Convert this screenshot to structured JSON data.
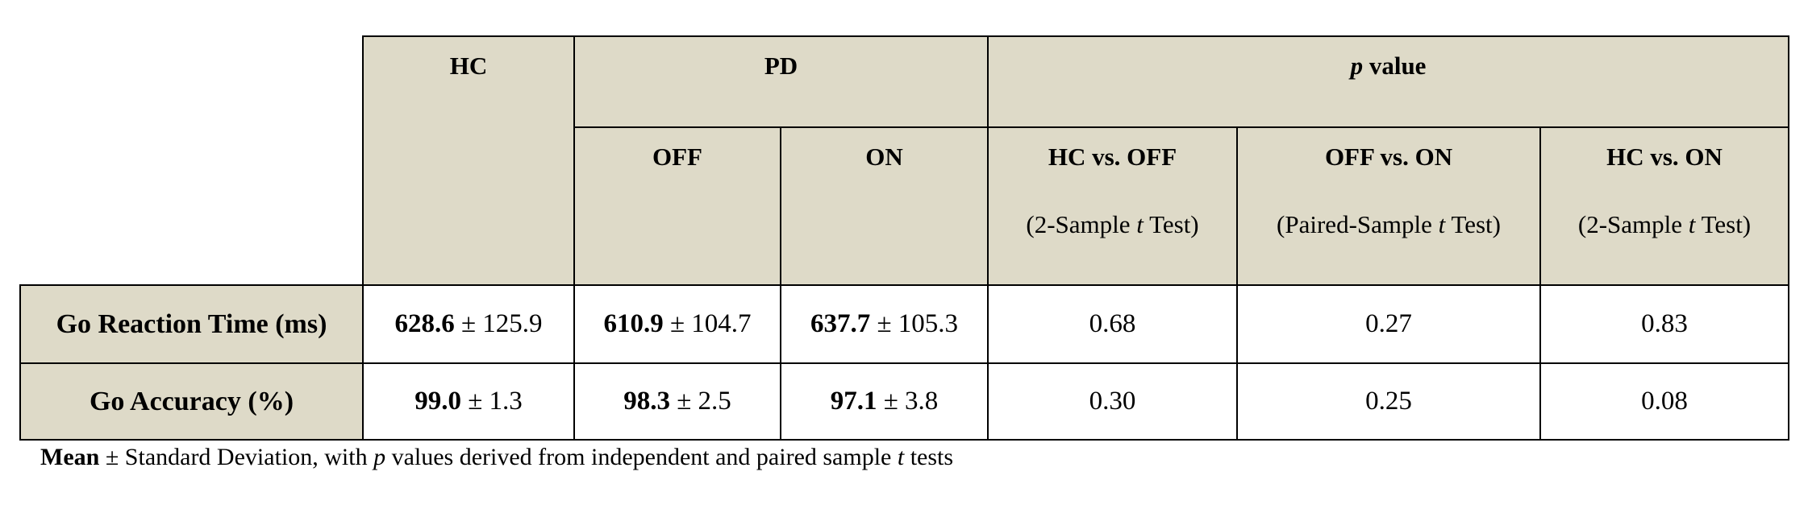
{
  "table": {
    "group_headers": {
      "hc": "HC",
      "pd": "PD",
      "p_value": [
        "p",
        " value"
      ]
    },
    "sub_headers": [
      {
        "title": "OFF"
      },
      {
        "title": "ON"
      },
      {
        "title": "HC vs. OFF",
        "test": [
          "(2-Sample ",
          "t",
          " Test)"
        ]
      },
      {
        "title": "OFF vs. ON",
        "test": [
          "(Paired-Sample ",
          "t",
          " Test)"
        ]
      },
      {
        "title": "HC vs. ON",
        "test": [
          "(2-Sample ",
          "t",
          " Test)"
        ]
      }
    ],
    "rows": [
      {
        "label": "Go Reaction Time (ms)",
        "stats": [
          {
            "mean": "628.6",
            "sd": " ± 125.9"
          },
          {
            "mean": "610.9",
            "sd": " ± 104.7"
          },
          {
            "mean": "637.7",
            "sd": " ± 105.3"
          }
        ],
        "p_values": [
          "0.68",
          "0.27",
          "0.83"
        ]
      },
      {
        "label": "Go Accuracy (%)",
        "stats": [
          {
            "mean": "99.0",
            "sd": " ± 1.3"
          },
          {
            "mean": "98.3",
            "sd": " ± 2.5"
          },
          {
            "mean": "97.1",
            "sd": " ± 3.8"
          }
        ],
        "p_values": [
          "0.30",
          "0.25",
          "0.08"
        ]
      }
    ]
  },
  "footnote": [
    "Mean",
    " ± Standard Deviation, with ",
    "p",
    " values derived from independent and paired sample ",
    "t",
    " tests"
  ]
}
